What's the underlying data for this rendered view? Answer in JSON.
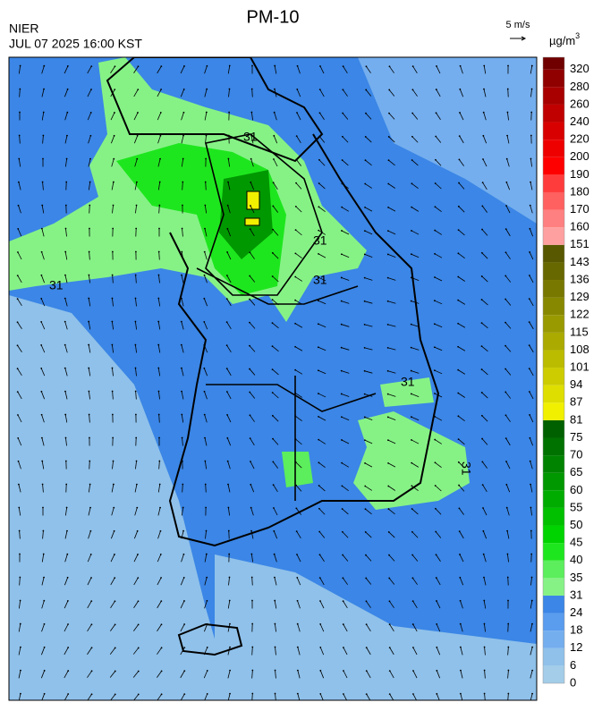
{
  "header": {
    "title": "PM-10",
    "source": "NIER",
    "timestamp": "JUL 07 2025 16:00 KST",
    "wind_scale": "5 m/s",
    "unit": "µg/m",
    "unit_power": "3"
  },
  "map": {
    "contour_labels": [
      "31",
      "31",
      "31",
      "31",
      "31",
      "31"
    ]
  },
  "legend": {
    "levels": [
      {
        "label": 0,
        "color": "#a3cde9"
      },
      {
        "label": 6,
        "color": "#8fc1ea"
      },
      {
        "label": 12,
        "color": "#74aeee"
      },
      {
        "label": 18,
        "color": "#5a9cee"
      },
      {
        "label": 24,
        "color": "#3b86e6"
      },
      {
        "label": 31,
        "color": "#86f286"
      },
      {
        "label": 35,
        "color": "#5cee5c"
      },
      {
        "label": 40,
        "color": "#1ee61e"
      },
      {
        "label": 45,
        "color": "#00d400"
      },
      {
        "label": 50,
        "color": "#00c000"
      },
      {
        "label": 55,
        "color": "#00ac00"
      },
      {
        "label": 60,
        "color": "#009800"
      },
      {
        "label": 65,
        "color": "#008400"
      },
      {
        "label": 70,
        "color": "#007200"
      },
      {
        "label": 75,
        "color": "#006000"
      },
      {
        "label": 81,
        "color": "#f0f000"
      },
      {
        "label": 87,
        "color": "#dede00"
      },
      {
        "label": 94,
        "color": "#cccc00"
      },
      {
        "label": 101,
        "color": "#bbbb00"
      },
      {
        "label": 108,
        "color": "#aaaa00"
      },
      {
        "label": 115,
        "color": "#999900"
      },
      {
        "label": 122,
        "color": "#888800"
      },
      {
        "label": 129,
        "color": "#787800"
      },
      {
        "label": 136,
        "color": "#686800"
      },
      {
        "label": 143,
        "color": "#585800"
      },
      {
        "label": 151,
        "color": "#ffa0a0"
      },
      {
        "label": 160,
        "color": "#ff8080"
      },
      {
        "label": 170,
        "color": "#ff6060"
      },
      {
        "label": 180,
        "color": "#ff3c3c"
      },
      {
        "label": 190,
        "color": "#ff0000"
      },
      {
        "label": 200,
        "color": "#ee0000"
      },
      {
        "label": 220,
        "color": "#d80000"
      },
      {
        "label": 240,
        "color": "#c00000"
      },
      {
        "label": 260,
        "color": "#a80000"
      },
      {
        "label": 280,
        "color": "#900000"
      },
      {
        "label": 320,
        "color": "#700000"
      }
    ]
  }
}
